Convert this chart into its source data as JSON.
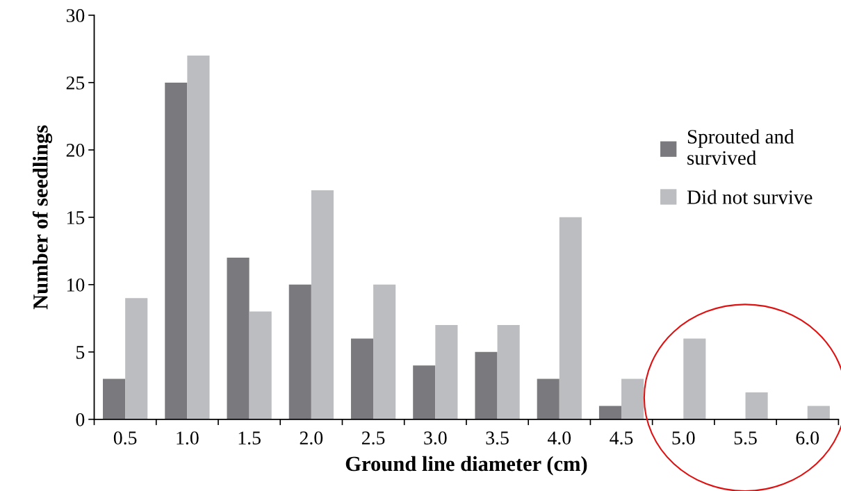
{
  "chart_data": {
    "type": "bar",
    "xlabel": "Ground line diameter (cm)",
    "ylabel": "Number of seedlings",
    "categories": [
      "0.5",
      "1.0",
      "1.5",
      "2.0",
      "2.5",
      "3.0",
      "3.5",
      "4.0",
      "4.5",
      "5.0",
      "5.5",
      "6.0"
    ],
    "series": [
      {
        "name": "Sprouted and\nsurvived",
        "color": "#7a7a7e",
        "values": [
          3,
          25,
          12,
          10,
          6,
          4,
          5,
          3,
          1,
          0,
          0,
          0
        ]
      },
      {
        "name": "Did not survive",
        "color": "#bcbdc0",
        "values": [
          9,
          27,
          8,
          17,
          10,
          7,
          7,
          15,
          3,
          6,
          2,
          1
        ]
      }
    ],
    "ylim": [
      0,
      30
    ],
    "yticks": [
      0,
      5,
      10,
      15,
      20,
      25,
      30
    ],
    "grid": false,
    "legend": "right"
  }
}
